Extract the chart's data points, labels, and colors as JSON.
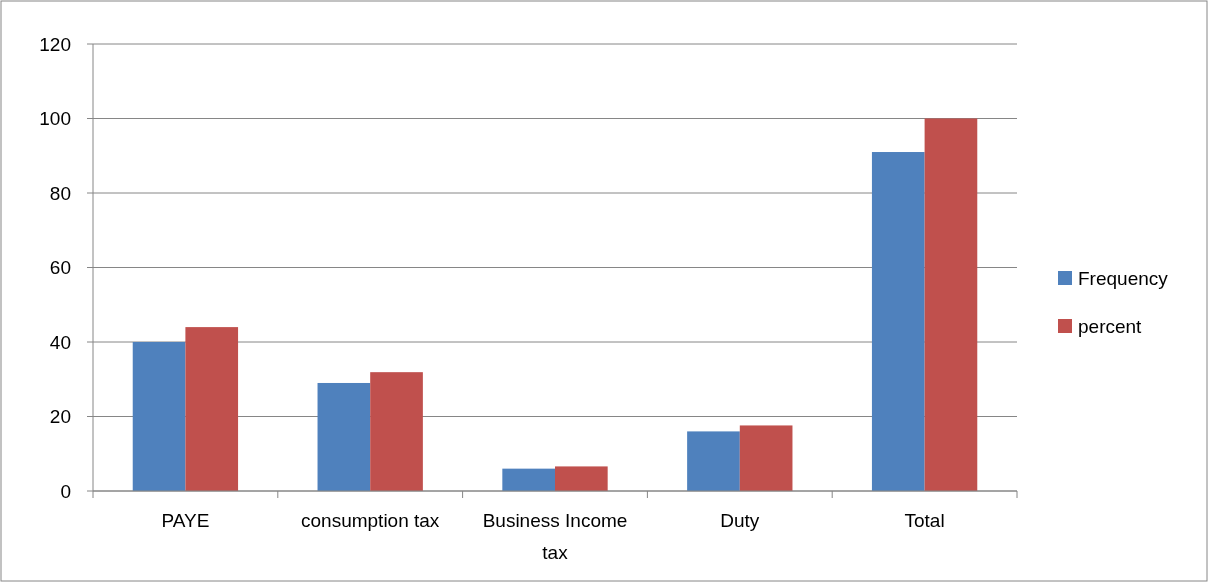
{
  "chart_data": {
    "type": "bar",
    "categories": [
      "PAYE",
      "consumption tax",
      "Business Income tax",
      "Duty",
      "Total"
    ],
    "series": [
      {
        "name": "Frequency",
        "color": "#4f81bd",
        "values": [
          40,
          29,
          6,
          16,
          91
        ]
      },
      {
        "name": "percent",
        "color": "#c0504d",
        "values": [
          44,
          31.9,
          6.6,
          17.6,
          100
        ]
      }
    ],
    "ylim": [
      0,
      120
    ],
    "yticks": [
      0,
      20,
      40,
      60,
      80,
      100,
      120
    ],
    "grid": "y",
    "legend": "right"
  }
}
